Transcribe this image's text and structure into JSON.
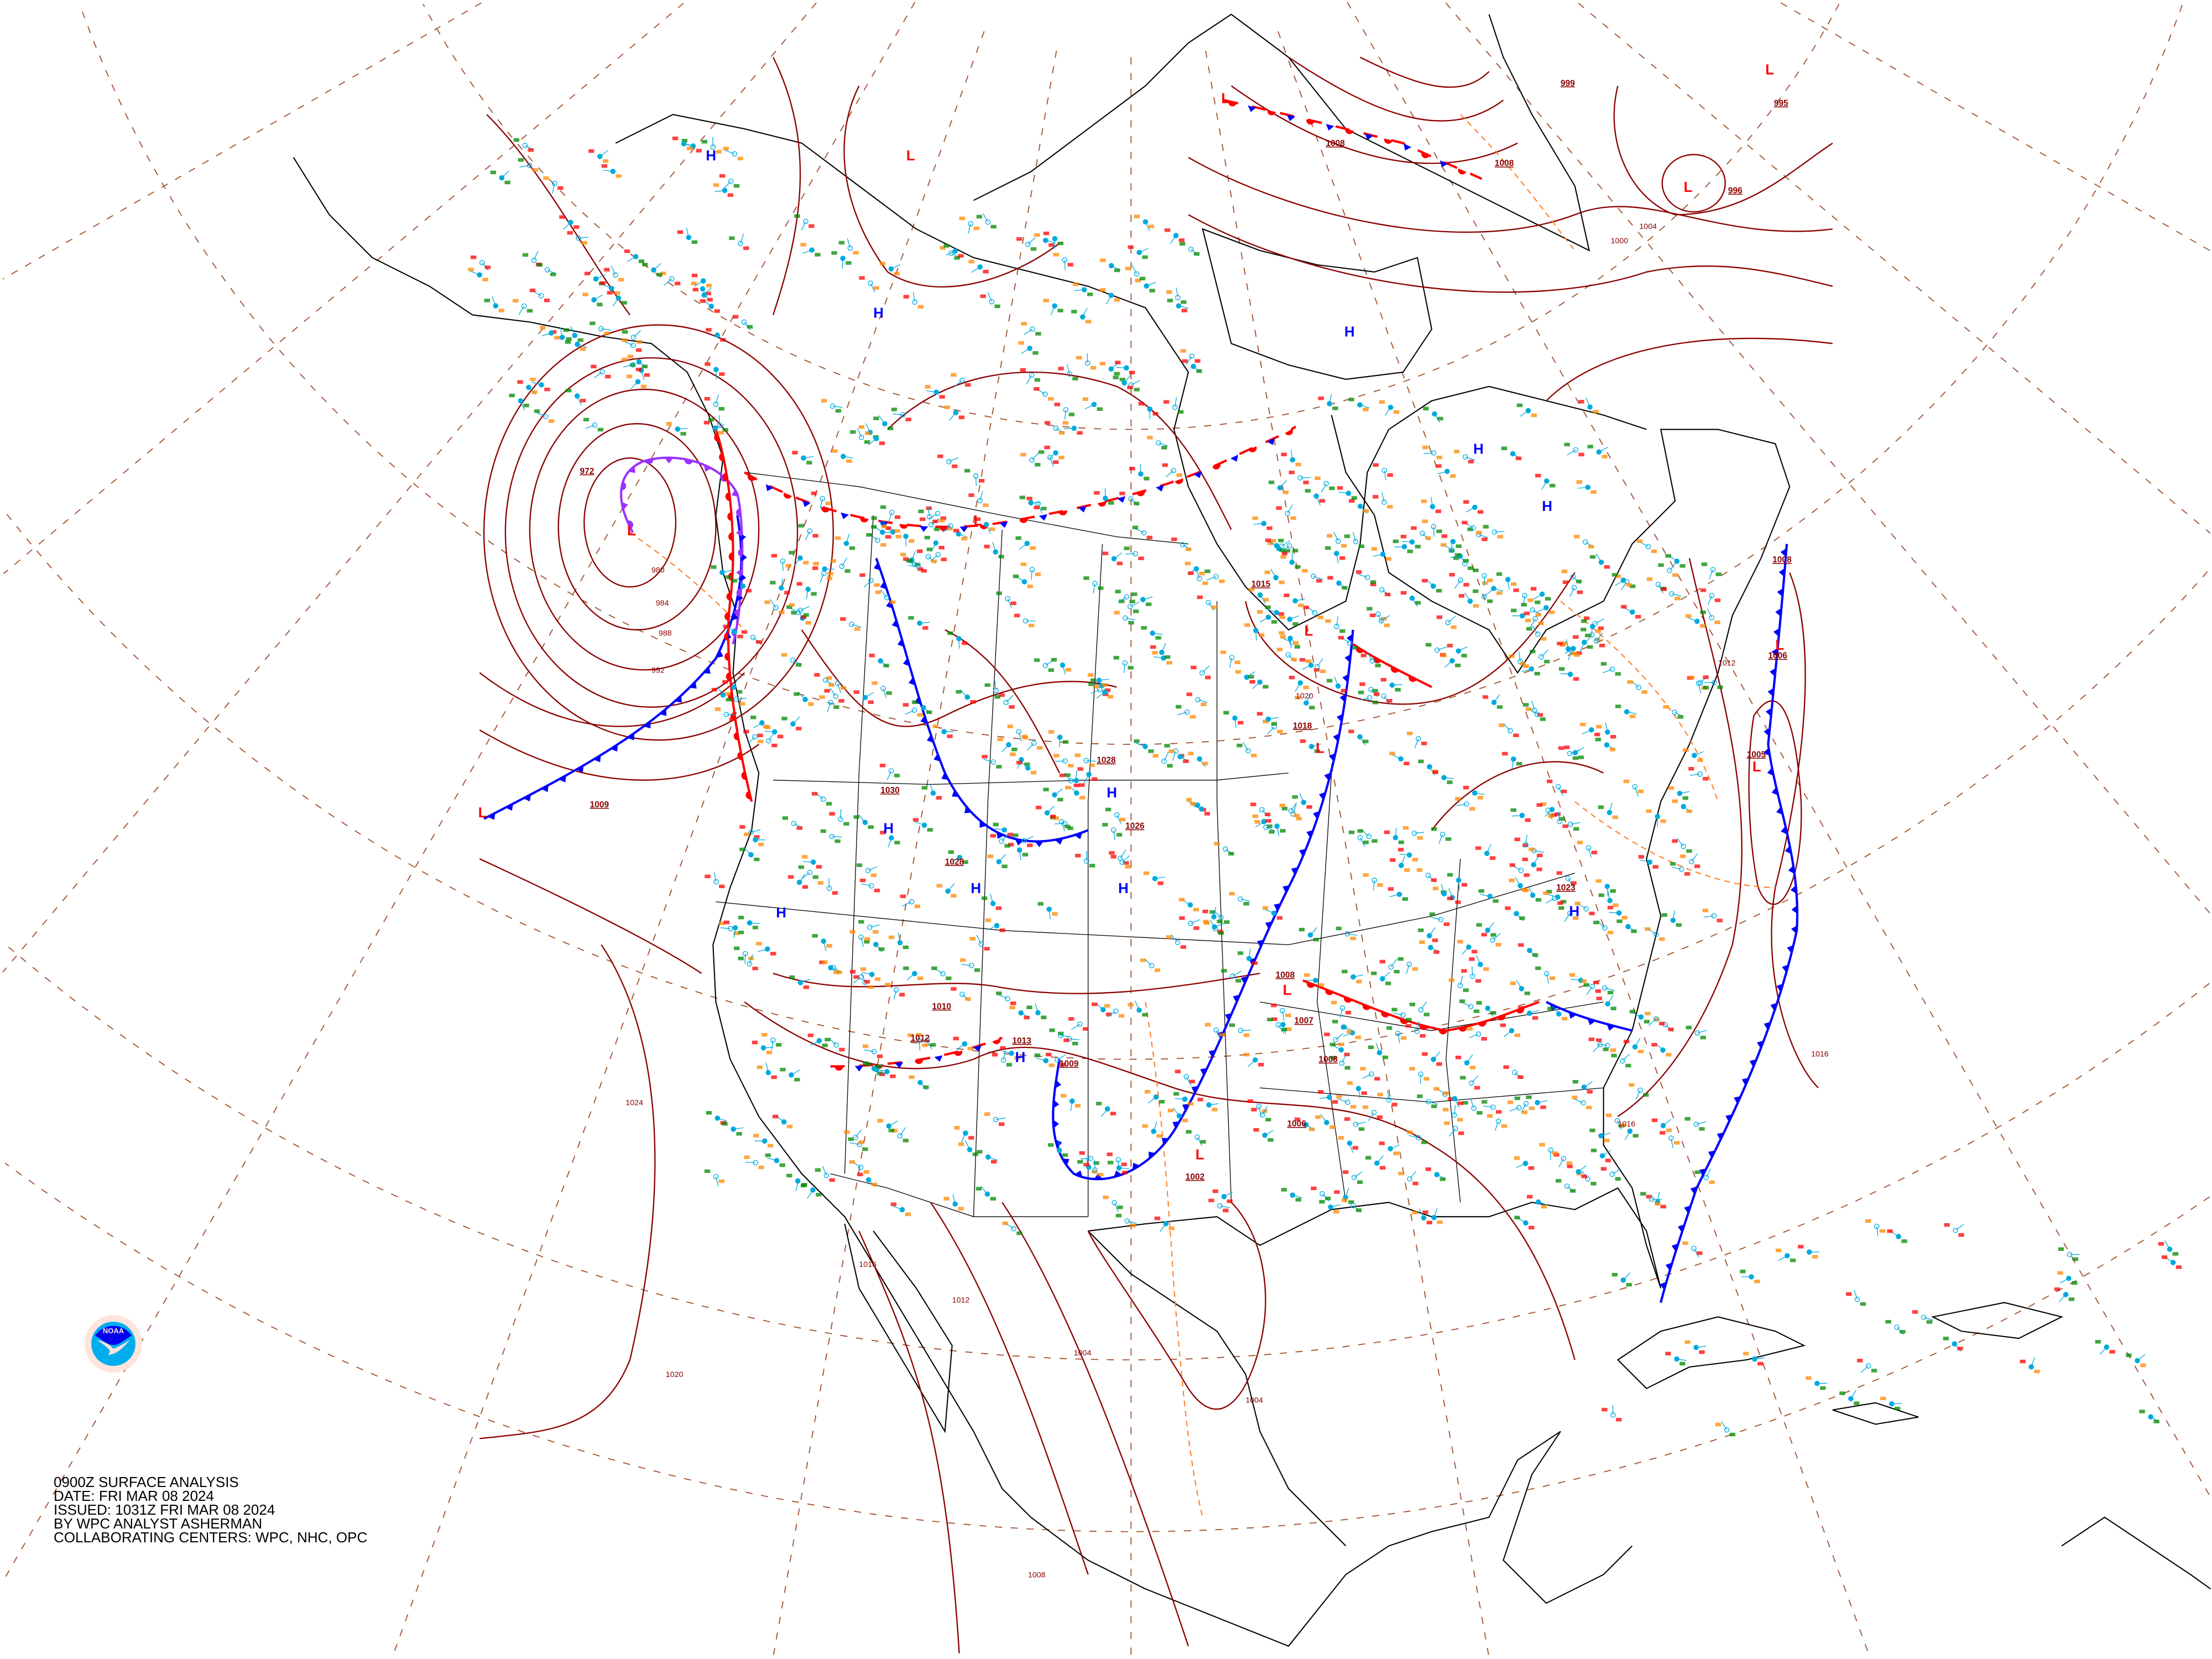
{
  "caption": {
    "line1": "0900Z SURFACE ANALYSIS",
    "line2": "DATE: FRI MAR 08 2024",
    "line3": "ISSUED: 1031Z FRI MAR 08 2024",
    "line4": "BY WPC ANALYST ASHERMAN",
    "line5": "COLLABORATING CENTERS: WPC, NHC, OPC"
  },
  "logo": {
    "text": "NOAA",
    "ring_text": "NATIONAL OCEANIC AND ATMOSPHERIC ADMINISTRATION · U.S. DEPARTMENT OF COMMERCE"
  },
  "symbols": {
    "high": "H",
    "low": "L"
  },
  "central_pressures": [
    "972",
    "1009",
    "1030",
    "1028",
    "1026",
    "1028",
    "1010",
    "1013",
    "1012",
    "1009",
    "1015",
    "1018",
    "1008",
    "1006",
    "1005",
    "1023",
    "1008",
    "1007",
    "1008",
    "1006",
    "1002",
    "999",
    "995",
    "996",
    "1008",
    "1008"
  ],
  "isobar_labels": [
    "980",
    "984",
    "988",
    "992",
    "1004",
    "1008",
    "1012",
    "1016",
    "1020",
    "1024",
    "1000",
    "1004",
    "1016",
    "1016",
    "1020",
    "1012",
    "1004"
  ],
  "colors": {
    "isobar": "#8b0000",
    "cold_front": "#0000ff",
    "warm_front": "#ff0000",
    "occluded_front": "#9933ff",
    "trough": "#ff7f27",
    "graticule": "#a0522d",
    "high": "#0000ff",
    "low": "#ff0000",
    "station": "#00aadd"
  },
  "fronts": [
    {
      "type": "cold"
    },
    {
      "type": "occluded"
    },
    {
      "type": "warm"
    },
    {
      "type": "stationary"
    },
    {
      "type": "cold"
    },
    {
      "type": "cold"
    },
    {
      "type": "warm"
    },
    {
      "type": "stationary"
    },
    {
      "type": "cold"
    },
    {
      "type": "stationary"
    },
    {
      "type": "warm"
    },
    {
      "type": "cold"
    }
  ]
}
